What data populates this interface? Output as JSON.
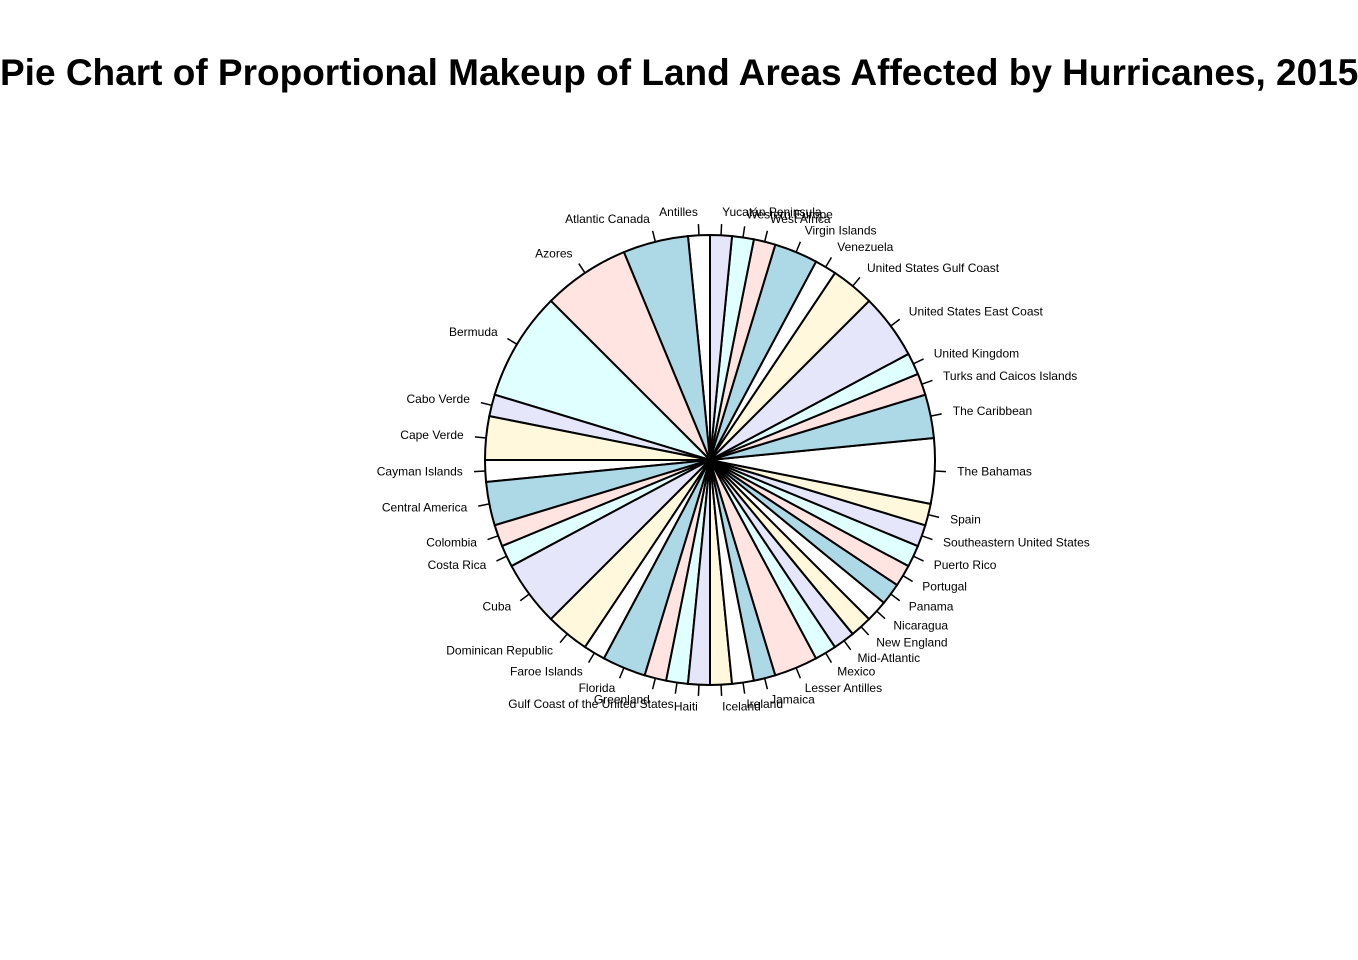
{
  "chart_data": {
    "type": "pie",
    "title": "Pie Chart of Proportional Makeup of Land Areas Affected by Hurricanes, 2015",
    "start_angle_deg": 90,
    "direction": "counterclockwise",
    "colors": [
      "#FFFFFF",
      "#ADD8E6",
      "#FFE4E1",
      "#E0FFFF",
      "#E6E6FA",
      "#FFF8DC"
    ],
    "slices": [
      {
        "label": "Antilles",
        "value": 1
      },
      {
        "label": "Atlantic Canada",
        "value": 3
      },
      {
        "label": "Azores",
        "value": 4
      },
      {
        "label": "Bermuda",
        "value": 5
      },
      {
        "label": "Cabo Verde",
        "value": 1
      },
      {
        "label": "Cape Verde",
        "value": 2
      },
      {
        "label": "Cayman Islands",
        "value": 1
      },
      {
        "label": "Central America",
        "value": 2
      },
      {
        "label": "Colombia",
        "value": 1
      },
      {
        "label": "Costa Rica",
        "value": 1
      },
      {
        "label": "Cuba",
        "value": 3
      },
      {
        "label": "Dominican Republic",
        "value": 2
      },
      {
        "label": "Faroe Islands",
        "value": 1
      },
      {
        "label": "Florida",
        "value": 2
      },
      {
        "label": "Greenland",
        "value": 1
      },
      {
        "label": "Gulf Coast of the United States",
        "value": 1
      },
      {
        "label": "Haiti",
        "value": 1
      },
      {
        "label": "Iceland",
        "value": 1
      },
      {
        "label": "Ireland",
        "value": 1
      },
      {
        "label": "Jamaica",
        "value": 1
      },
      {
        "label": "Lesser Antilles",
        "value": 2
      },
      {
        "label": "Mexico",
        "value": 1
      },
      {
        "label": "Mid-Atlantic",
        "value": 1
      },
      {
        "label": "New England",
        "value": 1
      },
      {
        "label": "Nicaragua",
        "value": 1
      },
      {
        "label": "Panama",
        "value": 1
      },
      {
        "label": "Portugal",
        "value": 1
      },
      {
        "label": "Puerto Rico",
        "value": 1
      },
      {
        "label": "Southeastern United States",
        "value": 1
      },
      {
        "label": "Spain",
        "value": 1
      },
      {
        "label": "The Bahamas",
        "value": 3
      },
      {
        "label": "The Caribbean",
        "value": 2
      },
      {
        "label": "Turks and Caicos Islands",
        "value": 1
      },
      {
        "label": "United Kingdom",
        "value": 1
      },
      {
        "label": "United States East Coast",
        "value": 3
      },
      {
        "label": "United States Gulf Coast",
        "value": 2
      },
      {
        "label": "Venezuela",
        "value": 1
      },
      {
        "label": "Virgin Islands",
        "value": 2
      },
      {
        "label": "West Africa",
        "value": 1
      },
      {
        "label": "Western Europe",
        "value": 1
      },
      {
        "label": "Yucatán Peninsula",
        "value": 1
      }
    ]
  }
}
